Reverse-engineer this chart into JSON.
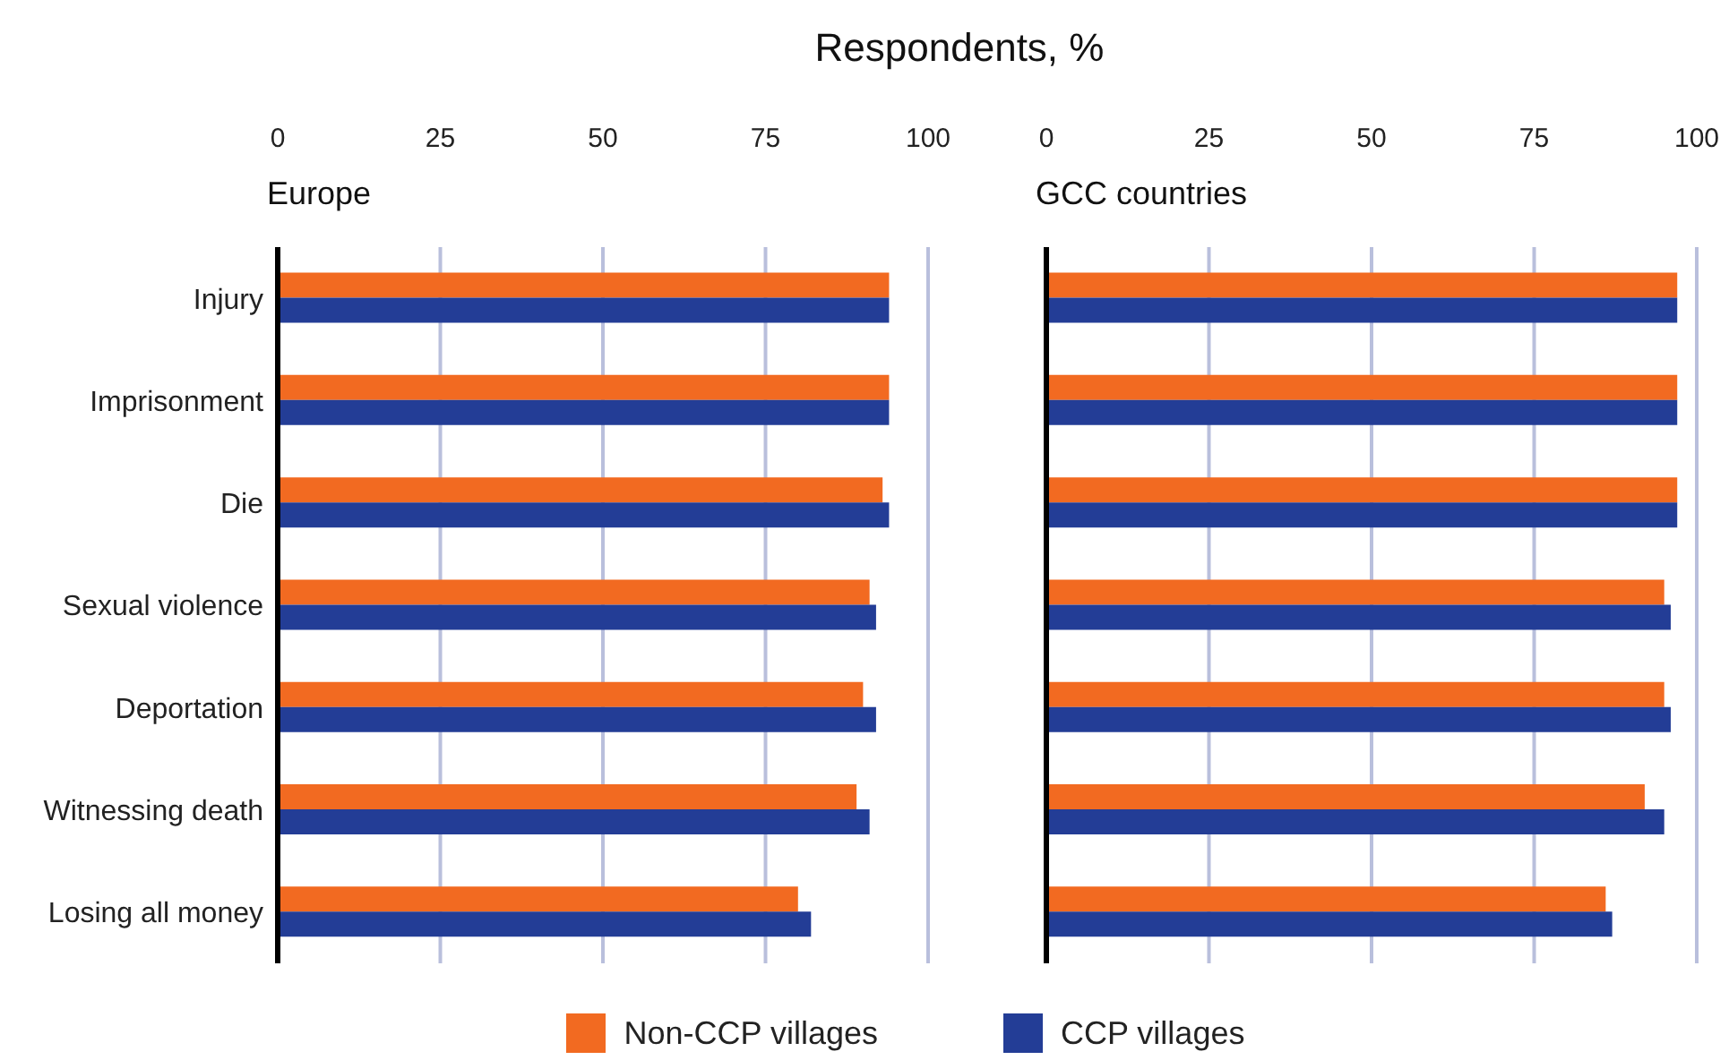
{
  "chart_data": [
    {
      "type": "bar",
      "orientation": "horizontal",
      "title": "Europe",
      "xlabel": "Respondents, %",
      "categories": [
        "Injury",
        "Imprisonment",
        "Die",
        "Sexual violence",
        "Deportation",
        "Witnessing death",
        "Losing all money"
      ],
      "xlim": [
        0,
        100
      ],
      "xticks": [
        0,
        25,
        50,
        75,
        100
      ],
      "grid": "x",
      "legend": "bottom",
      "series": [
        {
          "name": "Non-CCP villages",
          "color": "#f26a21",
          "values": [
            94,
            94,
            93,
            91,
            90,
            89,
            80
          ]
        },
        {
          "name": "CCP villages",
          "color": "#233d96",
          "values": [
            94,
            94,
            94,
            92,
            92,
            91,
            82
          ]
        }
      ]
    },
    {
      "type": "bar",
      "orientation": "horizontal",
      "title": "GCC countries",
      "categories": [
        null,
        null,
        null,
        null,
        null,
        null,
        null
      ],
      "xlim": [
        0,
        100
      ],
      "xticks": [
        0,
        25,
        50,
        75,
        100
      ],
      "grid": "x",
      "tick_labels": "x",
      "series": [
        {
          "color": "#f26a21",
          "values": [
            97,
            97,
            97,
            95,
            95,
            92,
            86
          ]
        },
        {
          "color": "#233d96",
          "values": [
            97,
            97,
            97,
            96,
            96,
            95,
            87
          ]
        }
      ]
    }
  ]
}
